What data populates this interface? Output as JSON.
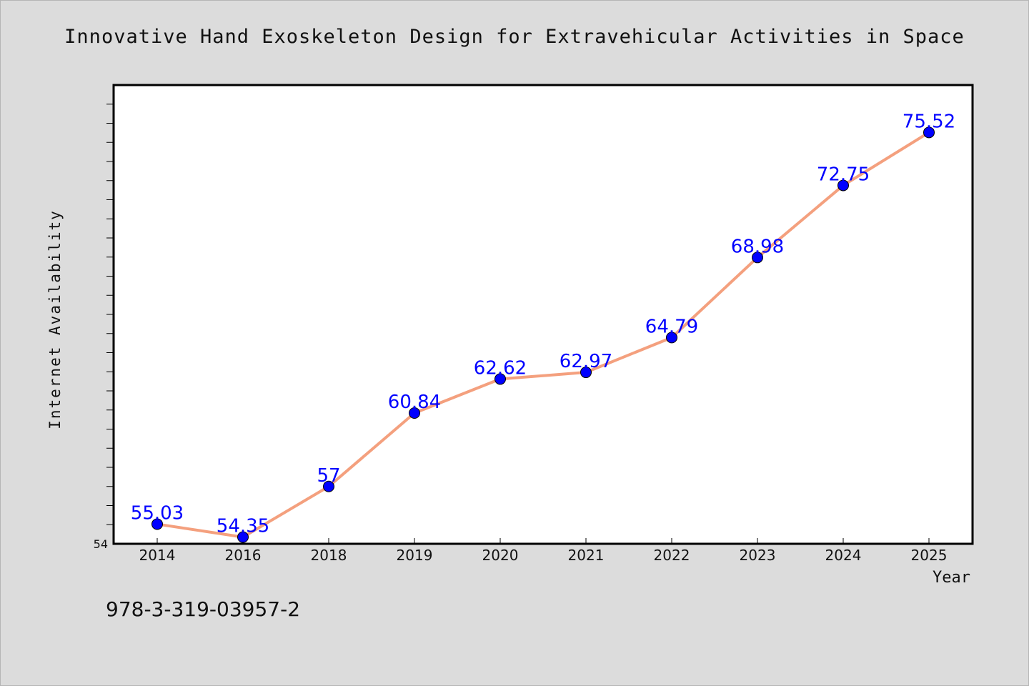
{
  "chart_data": {
    "type": "line",
    "title": "Innovative Hand Exoskeleton Design for Extravehicular Activities in Space",
    "xlabel": "Year",
    "ylabel": "Internet Availability",
    "categories": [
      "2014",
      "2016",
      "2018",
      "2019",
      "2020",
      "2021",
      "2022",
      "2023",
      "2024",
      "2025"
    ],
    "series": [
      {
        "values": [
          55.03,
          54.35,
          57,
          60.84,
          62.62,
          62.97,
          64.79,
          68.98,
          72.75,
          75.52
        ],
        "labels": [
          "55.03",
          "54.35",
          "57",
          "60.84",
          "62.62",
          "62.97",
          "64.79",
          "68.98",
          "72.75",
          "75.52"
        ]
      }
    ],
    "ylim": [
      54,
      78
    ],
    "y_tick_labels": [
      "54"
    ],
    "grid": false,
    "line_color": "#f4a07e",
    "marker_color": "#0000ff",
    "label_color": "#0000ff"
  },
  "footer": {
    "note": "978-3-319-03957-2"
  }
}
